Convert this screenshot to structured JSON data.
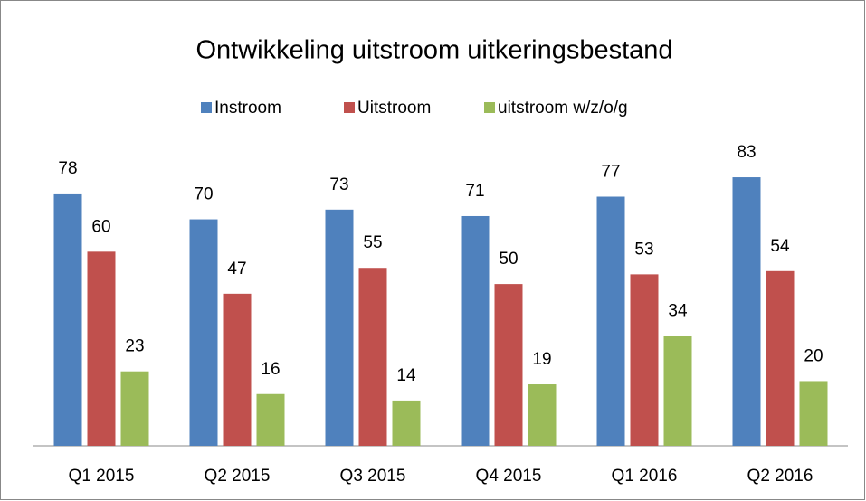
{
  "chart_data": {
    "type": "bar",
    "title": "Ontwikkeling uitstroom uitkeringsbestand",
    "categories": [
      "Q1 2015",
      "Q2 2015",
      "Q3 2015",
      "Q4 2015",
      "Q1 2016",
      "Q2 2016"
    ],
    "series": [
      {
        "name": "Instroom",
        "color": "#4f81bd",
        "values": [
          78,
          70,
          73,
          71,
          77,
          83
        ]
      },
      {
        "name": "Uitstroom",
        "color": "#c0504d",
        "values": [
          60,
          47,
          55,
          50,
          53,
          54
        ]
      },
      {
        "name": "uitstroom w/z/o/g",
        "color": "#9bbb59",
        "values": [
          23,
          16,
          14,
          19,
          34,
          20
        ]
      }
    ],
    "ylim": [
      0,
      90
    ],
    "legend": "top"
  }
}
